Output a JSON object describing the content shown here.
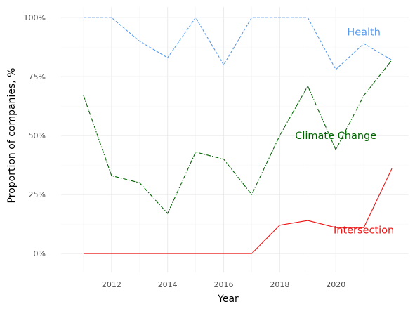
{
  "chart_data": {
    "type": "line",
    "title": "",
    "xlabel": "Year",
    "ylabel": "Proportion of companies, %",
    "x": [
      2011,
      2012,
      2013,
      2014,
      2015,
      2016,
      2017,
      2018,
      2019,
      2020,
      2021,
      2022
    ],
    "xlim": [
      2010.2,
      2022.6
    ],
    "ylim": [
      -0.08,
      1.045
    ],
    "x_ticks": [
      2012,
      2014,
      2016,
      2018,
      2020
    ],
    "x_tick_labels": [
      "2012",
      "2014",
      "2016",
      "2018",
      "2020"
    ],
    "y_ticks": [
      0,
      0.25,
      0.5,
      0.75,
      1.0
    ],
    "y_tick_labels": [
      "0%",
      "25%",
      "50%",
      "75%",
      "100%"
    ],
    "grid": true,
    "legend": "none (direct labels)",
    "series": [
      {
        "name": "Health",
        "color": "#5599ee",
        "dash": "dashed",
        "values": [
          1.0,
          1.0,
          0.9,
          0.83,
          1.0,
          0.8,
          1.0,
          1.0,
          1.0,
          0.78,
          0.89,
          0.82
        ]
      },
      {
        "name": "Climate Change",
        "color": "#006400",
        "dash": "dashdot",
        "values": [
          0.67,
          0.33,
          0.3,
          0.17,
          0.43,
          0.4,
          0.25,
          0.5,
          0.71,
          0.44,
          0.67,
          0.82
        ]
      },
      {
        "name": "Intersection",
        "color": "#ee1111",
        "dash": "solid",
        "values": [
          0.0,
          0.0,
          0.0,
          0.0,
          0.0,
          0.0,
          0.0,
          0.12,
          0.14,
          0.11,
          0.11,
          0.36
        ]
      }
    ],
    "annotations": [
      {
        "text": "Health",
        "series": "Health",
        "x": 2021.0,
        "y": 0.94
      },
      {
        "text": "Climate Change",
        "series": "Climate Change",
        "x": 2020.0,
        "y": 0.5
      },
      {
        "text": "Intersection",
        "series": "Intersection",
        "x": 2021.0,
        "y": 0.1
      }
    ]
  }
}
